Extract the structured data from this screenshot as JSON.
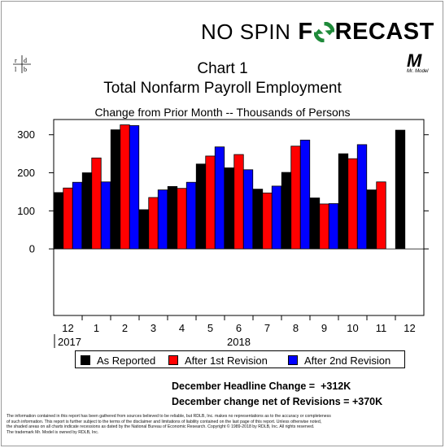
{
  "brand": {
    "part1": "NO SPIN",
    "part2_before": "F",
    "part2_after": "RECAST",
    "logo_icon": "green-arrows-circle-icon"
  },
  "header": {
    "chart_label": "Chart 1",
    "title": "Total Nonfarm Payroll Employment",
    "subtitle": "Change from Prior Month -- Thousands of Persons"
  },
  "logos": {
    "left_icon": "rdb-logo-icon",
    "right_icon": "mr-model-logo-icon",
    "mr_model_letter": "M",
    "mr_model_caption": "Mr. Model"
  },
  "colors": {
    "as_reported": "#000000",
    "after_1st": "#ff0000",
    "after_2nd": "#0000ff",
    "plot_bg": "#ffffff"
  },
  "chart_data": {
    "type": "bar",
    "categories": [
      "12",
      "1",
      "2",
      "3",
      "4",
      "5",
      "6",
      "7",
      "8",
      "9",
      "10",
      "11",
      "12"
    ],
    "year_labels": [
      {
        "label": "2017",
        "under_category": "12"
      },
      {
        "label": "2018",
        "under_category": "6"
      }
    ],
    "series": [
      {
        "name": "As Reported",
        "values": [
          148,
          200,
          313,
          103,
          164,
          223,
          213,
          157,
          201,
          134,
          250,
          155,
          312
        ]
      },
      {
        "name": "After 1st Revision",
        "values": [
          160,
          239,
          326,
          135,
          159,
          244,
          248,
          147,
          270,
          118,
          237,
          176,
          null
        ]
      },
      {
        "name": "After 2nd Revision",
        "values": [
          175,
          176,
          324,
          155,
          175,
          268,
          208,
          165,
          286,
          119,
          274,
          null,
          null
        ]
      }
    ],
    "yticks": [
      0,
      100,
      200,
      300
    ],
    "ylim": [
      -175,
      340
    ],
    "grid": false,
    "legend_position": "bottom"
  },
  "stats": [
    {
      "label": "December Headline Change =",
      "value": "+312K"
    },
    {
      "label": "December change net of Revisions =",
      "value": "+370K"
    }
  ],
  "disclaimer": [
    "The information contained in this report has been gathered from sources believed to be reliable, but RDLB, Inc. makes no representations as to the accuracy or completeness",
    "of such information. This report is further subject to the terms of the disclaimer and limitations of liability contained on the last page of this report. Unless otherwise noted,",
    "the shaded areas on all charts indicate recessions as dated by the National Bureau of Economic Research. Copyright © 1989-2018 by RDLB, Inc. All rights reserved.",
    "The trademark Mr. Model is owned by RDLB, Inc."
  ]
}
